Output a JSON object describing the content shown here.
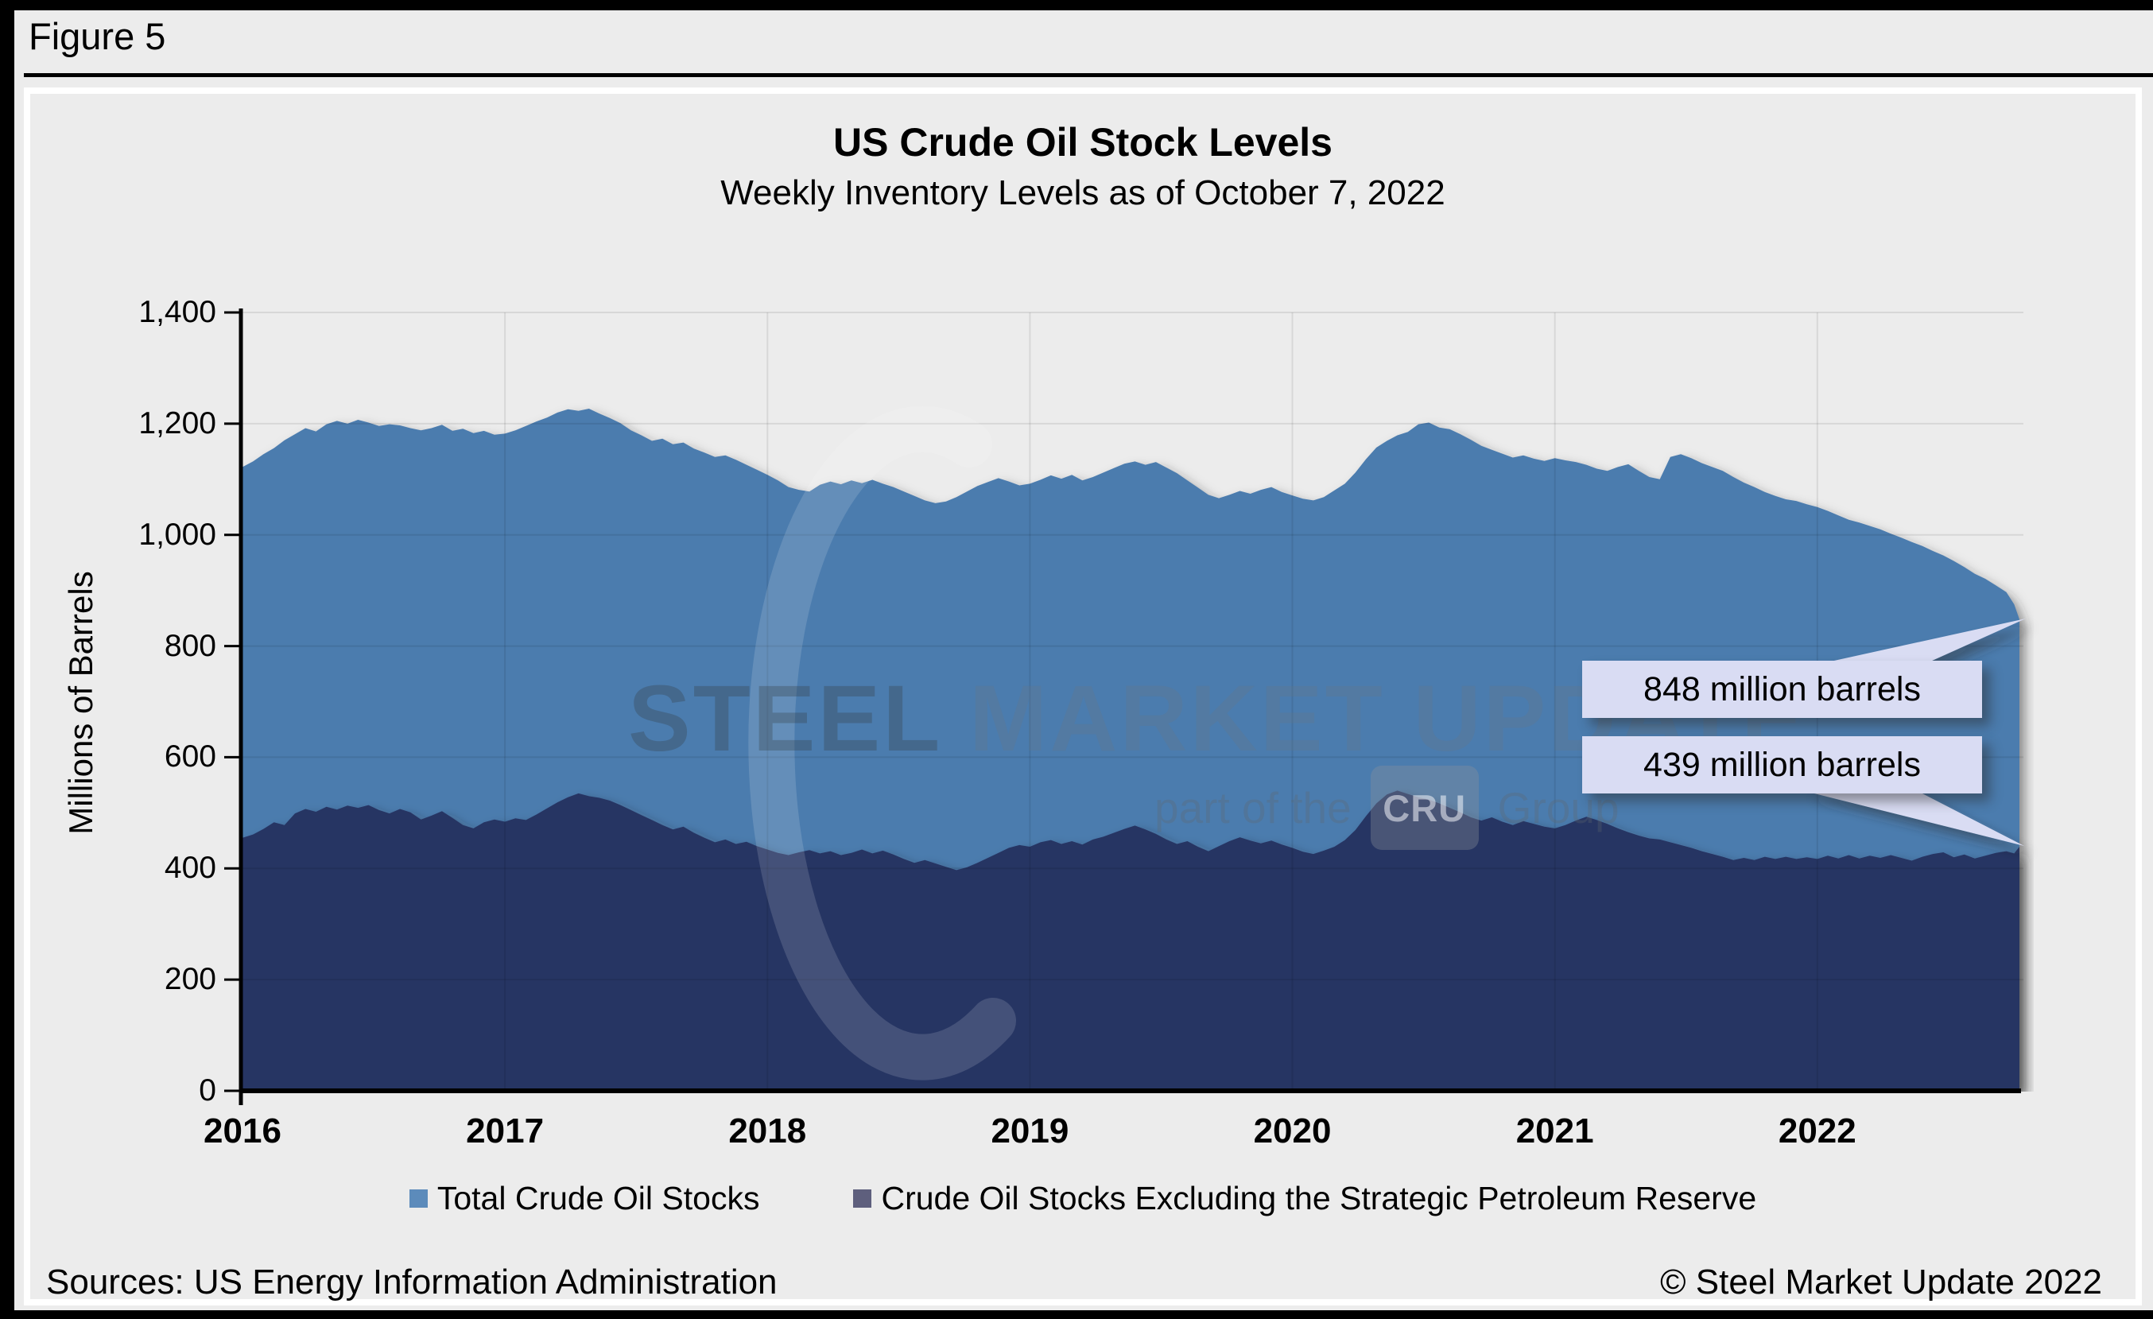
{
  "figure": {
    "label": "Figure 5"
  },
  "footer": {
    "sources": "Sources: US Energy Information Administration",
    "copyright": "© Steel Market Update 2022"
  },
  "watermark": {
    "strong": "STEEL",
    "rest": " MARKET UPDATE",
    "tagline_prefix": "part of the",
    "tagline_box": "CRU",
    "tagline_suffix": "Group"
  },
  "colors": {
    "page_background": "#000000",
    "panel_background": "#ECECEC",
    "panel_border": "#FFFFFF",
    "total_area": "#4B7BAE",
    "excl_area": "#283463",
    "legend_total_swatch": "#5C8BBB",
    "legend_excl_swatch": "#5E5F7D",
    "callout_fill": "#D9DCF3",
    "gridline": "rgba(0,0,0,0.085)"
  },
  "chart_data": {
    "type": "area",
    "title": "US Crude Oil Stock Levels",
    "subtitle": "Weekly Inventory Levels as of October 7, 2022",
    "xlabel": "",
    "ylabel": "Millions of Barrels",
    "ylim": [
      0,
      1400
    ],
    "y_tick_step": 200,
    "y_tick_labels": [
      "0",
      "200",
      "400",
      "600",
      "800",
      "1,000",
      "1,200",
      "1,400"
    ],
    "x_labels": [
      "2016",
      "2017",
      "2018",
      "2019",
      "2020",
      "2021",
      "2022"
    ],
    "grid": true,
    "legend_position": "bottom",
    "x_units": "decimal year, weekly data",
    "x": [
      2016.0,
      2016.04,
      2016.08,
      2016.12,
      2016.16,
      2016.2,
      2016.24,
      2016.28,
      2016.32,
      2016.36,
      2016.4,
      2016.44,
      2016.48,
      2016.52,
      2016.56,
      2016.6,
      2016.64,
      2016.68,
      2016.72,
      2016.76,
      2016.8,
      2016.84,
      2016.88,
      2016.92,
      2016.96,
      2017.0,
      2017.04,
      2017.08,
      2017.12,
      2017.16,
      2017.2,
      2017.24,
      2017.28,
      2017.32,
      2017.36,
      2017.4,
      2017.44,
      2017.48,
      2017.52,
      2017.56,
      2017.6,
      2017.64,
      2017.68,
      2017.72,
      2017.76,
      2017.8,
      2017.84,
      2017.88,
      2017.92,
      2017.96,
      2018.0,
      2018.04,
      2018.08,
      2018.12,
      2018.16,
      2018.2,
      2018.24,
      2018.28,
      2018.32,
      2018.36,
      2018.4,
      2018.44,
      2018.48,
      2018.52,
      2018.56,
      2018.6,
      2018.64,
      2018.68,
      2018.72,
      2018.76,
      2018.8,
      2018.84,
      2018.88,
      2018.92,
      2018.96,
      2019.0,
      2019.04,
      2019.08,
      2019.12,
      2019.16,
      2019.2,
      2019.24,
      2019.28,
      2019.32,
      2019.36,
      2019.4,
      2019.44,
      2019.48,
      2019.52,
      2019.56,
      2019.6,
      2019.64,
      2019.68,
      2019.72,
      2019.76,
      2019.8,
      2019.84,
      2019.88,
      2019.92,
      2019.96,
      2020.0,
      2020.04,
      2020.08,
      2020.12,
      2020.16,
      2020.2,
      2020.24,
      2020.28,
      2020.32,
      2020.36,
      2020.4,
      2020.44,
      2020.48,
      2020.52,
      2020.56,
      2020.6,
      2020.64,
      2020.68,
      2020.72,
      2020.76,
      2020.8,
      2020.84,
      2020.88,
      2020.92,
      2020.96,
      2021.0,
      2021.04,
      2021.08,
      2021.12,
      2021.16,
      2021.2,
      2021.24,
      2021.28,
      2021.32,
      2021.36,
      2021.4,
      2021.44,
      2021.48,
      2021.52,
      2021.56,
      2021.6,
      2021.64,
      2021.68,
      2021.72,
      2021.76,
      2021.8,
      2021.84,
      2021.88,
      2021.92,
      2021.96,
      2022.0,
      2022.04,
      2022.08,
      2022.12,
      2022.16,
      2022.2,
      2022.24,
      2022.28,
      2022.32,
      2022.36,
      2022.4,
      2022.44,
      2022.48,
      2022.52,
      2022.56,
      2022.6,
      2022.64,
      2022.68,
      2022.72,
      2022.75,
      2022.77
    ],
    "series": [
      {
        "name": "Total Crude Oil Stocks",
        "color": "#4B7BAE",
        "legend_color": "#5C8BBB",
        "values": [
          1122,
          1132,
          1145,
          1156,
          1170,
          1181,
          1192,
          1186,
          1199,
          1205,
          1200,
          1207,
          1202,
          1196,
          1199,
          1197,
          1192,
          1188,
          1192,
          1198,
          1187,
          1191,
          1183,
          1187,
          1180,
          1182,
          1188,
          1196,
          1204,
          1211,
          1220,
          1226,
          1223,
          1227,
          1218,
          1210,
          1201,
          1188,
          1179,
          1169,
          1173,
          1163,
          1166,
          1155,
          1148,
          1140,
          1143,
          1135,
          1126,
          1117,
          1108,
          1098,
          1086,
          1081,
          1078,
          1090,
          1096,
          1091,
          1098,
          1093,
          1099,
          1092,
          1086,
          1078,
          1070,
          1062,
          1057,
          1060,
          1068,
          1078,
          1088,
          1095,
          1102,
          1096,
          1089,
          1092,
          1099,
          1107,
          1101,
          1108,
          1098,
          1104,
          1112,
          1120,
          1128,
          1132,
          1126,
          1131,
          1121,
          1111,
          1098,
          1085,
          1072,
          1066,
          1072,
          1079,
          1074,
          1081,
          1086,
          1077,
          1071,
          1065,
          1062,
          1068,
          1080,
          1092,
          1112,
          1136,
          1157,
          1169,
          1179,
          1185,
          1199,
          1202,
          1193,
          1190,
          1181,
          1171,
          1160,
          1153,
          1146,
          1139,
          1143,
          1137,
          1133,
          1138,
          1134,
          1131,
          1126,
          1119,
          1115,
          1122,
          1127,
          1115,
          1104,
          1100,
          1140,
          1145,
          1138,
          1129,
          1122,
          1115,
          1104,
          1094,
          1086,
          1077,
          1070,
          1064,
          1061,
          1055,
          1050,
          1043,
          1035,
          1027,
          1022,
          1016,
          1010,
          1002,
          995,
          987,
          980,
          971,
          963,
          953,
          942,
          930,
          921,
          909,
          897,
          875,
          848
        ]
      },
      {
        "name": "Crude Oil Stocks Excluding the Strategic Petroleum Reserve",
        "color": "#283463",
        "legend_color": "#5E5F7D",
        "values": [
          455,
          461,
          471,
          483,
          478,
          499,
          507,
          502,
          511,
          506,
          513,
          509,
          514,
          505,
          499,
          507,
          501,
          488,
          495,
          503,
          491,
          478,
          472,
          483,
          488,
          484,
          490,
          487,
          497,
          508,
          519,
          528,
          535,
          530,
          527,
          522,
          514,
          505,
          496,
          487,
          478,
          470,
          475,
          464,
          455,
          447,
          452,
          444,
          448,
          440,
          434,
          428,
          424,
          429,
          433,
          427,
          431,
          424,
          428,
          434,
          427,
          432,
          425,
          417,
          410,
          415,
          409,
          403,
          397,
          402,
          410,
          419,
          428,
          437,
          442,
          439,
          447,
          451,
          444,
          449,
          443,
          452,
          457,
          464,
          471,
          477,
          470,
          462,
          452,
          444,
          449,
          439,
          431,
          440,
          449,
          456,
          450,
          445,
          450,
          443,
          437,
          430,
          426,
          432,
          439,
          451,
          469,
          494,
          517,
          533,
          540,
          534,
          528,
          524,
          517,
          509,
          501,
          492,
          486,
          492,
          484,
          478,
          485,
          480,
          475,
          472,
          478,
          486,
          493,
          487,
          480,
          472,
          465,
          459,
          454,
          452,
          447,
          442,
          437,
          431,
          426,
          421,
          415,
          419,
          415,
          421,
          417,
          421,
          417,
          420,
          417,
          423,
          418,
          424,
          418,
          423,
          419,
          424,
          419,
          414,
          421,
          426,
          429,
          420,
          425,
          418,
          423,
          428,
          431,
          427,
          439
        ]
      }
    ],
    "annotations": [
      {
        "text": "848 million barrels",
        "series": "Total Crude Oil Stocks",
        "x": 2022.77,
        "value": 848
      },
      {
        "text": "439 million barrels",
        "series": "Crude Oil Stocks Excluding the Strategic Petroleum Reserve",
        "x": 2022.77,
        "value": 439
      }
    ]
  }
}
